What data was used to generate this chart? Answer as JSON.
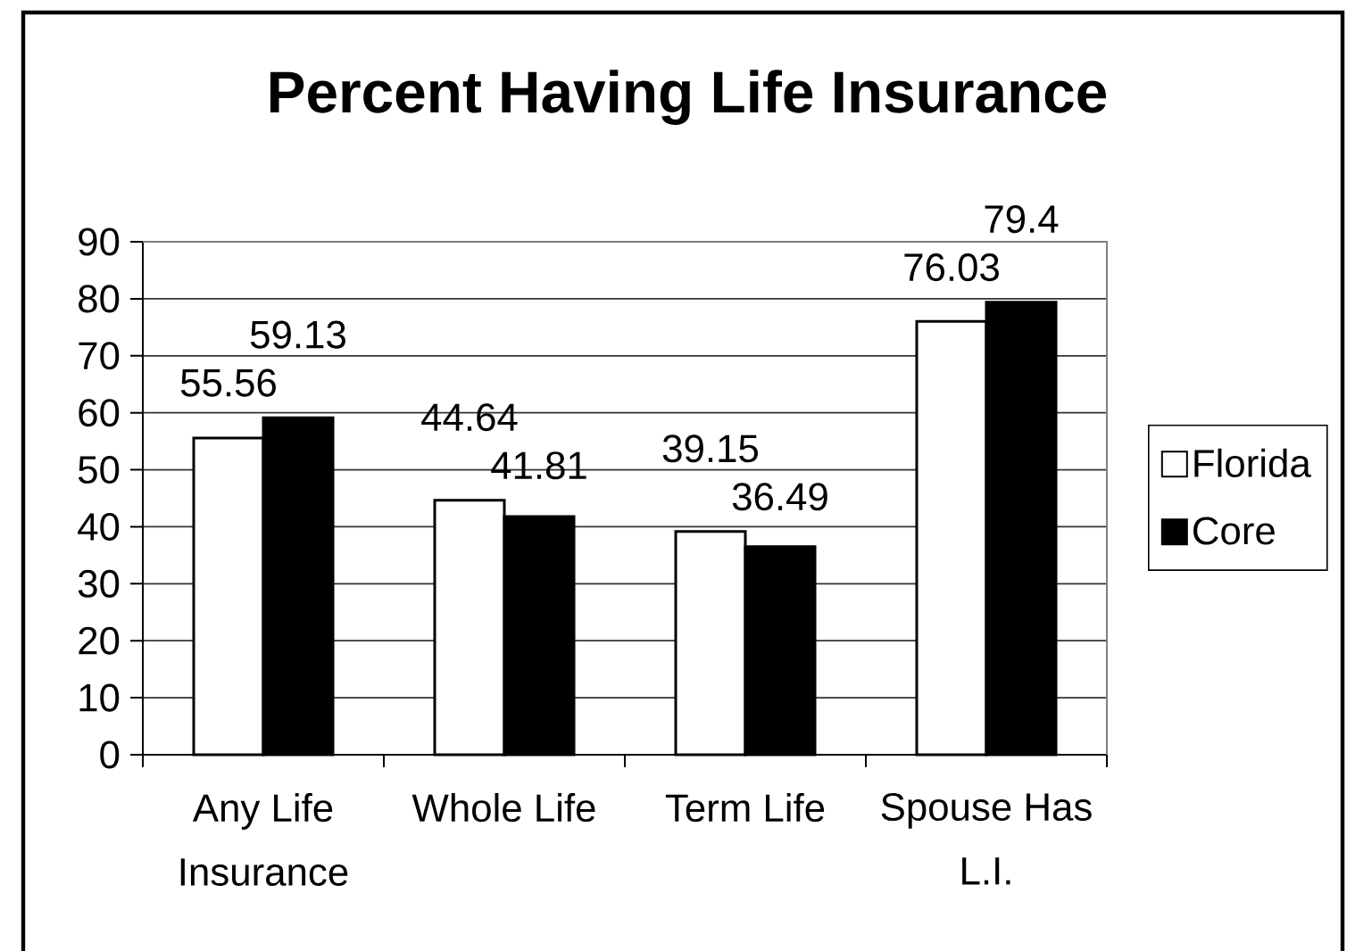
{
  "chart_data": {
    "type": "bar",
    "title": "Percent Having Life Insurance",
    "categories": [
      "Any Life Insurance",
      "Whole Life",
      "Term Life",
      "Spouse Has L.I."
    ],
    "series": [
      {
        "name": "Florida",
        "color": "#ffffff",
        "values": [
          55.56,
          44.64,
          39.15,
          76.03
        ]
      },
      {
        "name": "Core",
        "color": "#000000",
        "values": [
          59.13,
          41.81,
          36.49,
          79.4
        ]
      }
    ],
    "ylim": [
      0,
      90
    ],
    "yticks": [
      0,
      10,
      20,
      30,
      40,
      50,
      60,
      70,
      80,
      90
    ],
    "grid": "y",
    "legend": "right",
    "data_labels": true
  }
}
